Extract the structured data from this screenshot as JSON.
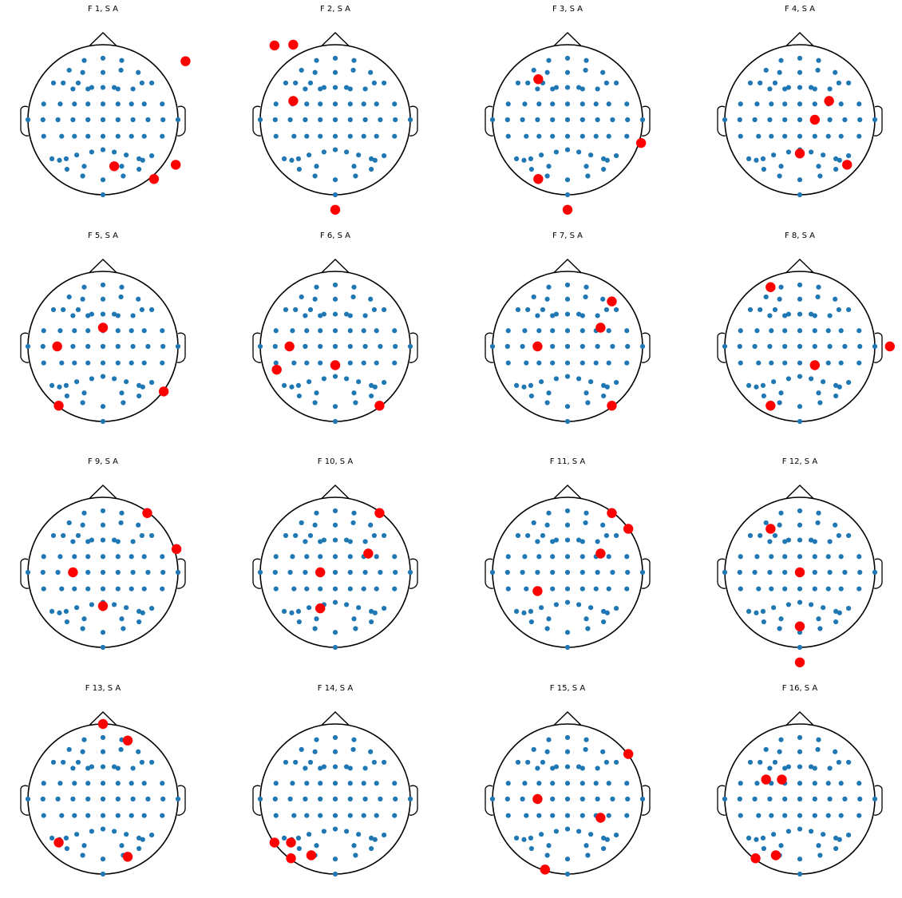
{
  "colors": {
    "sensor": "#1f77b4",
    "selected": "#ff0000",
    "outline": "#000000"
  },
  "rows": [
    [
      {
        "title": "F 1, S A"
      },
      {
        "title": "F 2, S A"
      },
      {
        "title": "F 3, S A"
      },
      {
        "title": "F 4, S A"
      }
    ],
    [
      {
        "title": "F 5, S A"
      },
      {
        "title": "F 6, S A"
      },
      {
        "title": "F 7, S A"
      },
      {
        "title": "F 8, S A"
      }
    ],
    [
      {
        "title": "F 9, S A"
      },
      {
        "title": "F 10, S A"
      },
      {
        "title": "F 11, S A"
      },
      {
        "title": "F 12, S A"
      }
    ],
    [
      {
        "title": "F 13, S A"
      },
      {
        "title": "F 14, S A"
      },
      {
        "title": "F 15, S A"
      },
      {
        "title": "F 16, S A"
      }
    ]
  ],
  "selected_sensors": {
    "F 1, S A": [
      [
        1.1,
        0.78
      ],
      [
        0.15,
        -0.62
      ],
      [
        0.97,
        -0.6
      ],
      [
        0.68,
        -0.79
      ]
    ],
    "F 2, S A": [
      [
        -0.81,
        0.99
      ],
      [
        -0.56,
        1.0
      ],
      [
        -0.56,
        0.25
      ],
      [
        0.0,
        -1.2
      ]
    ],
    "F 3, S A": [
      [
        -0.39,
        0.54
      ],
      [
        0.98,
        -0.31
      ],
      [
        -0.39,
        -0.79
      ],
      [
        0.0,
        -1.2
      ]
    ],
    "F 4, S A": [
      [
        0.39,
        0.25
      ],
      [
        0.2,
        0.0
      ],
      [
        0.0,
        -0.45
      ],
      [
        0.63,
        -0.6
      ]
    ],
    "F 5, S A": [
      [
        0.0,
        0.25
      ],
      [
        -0.61,
        0.0
      ],
      [
        0.81,
        -0.6
      ],
      [
        -0.59,
        -0.79
      ]
    ],
    "F 6, S A": [
      [
        -0.61,
        0.0
      ],
      [
        0.0,
        -0.25
      ],
      [
        -0.78,
        -0.31
      ],
      [
        0.59,
        -0.79
      ]
    ],
    "F 7, S A": [
      [
        0.59,
        0.6
      ],
      [
        0.44,
        0.25
      ],
      [
        -0.4,
        0.0
      ],
      [
        0.59,
        -0.79
      ]
    ],
    "F 8, S A": [
      [
        -0.39,
        0.79
      ],
      [
        1.2,
        0.0
      ],
      [
        0.2,
        -0.25
      ],
      [
        -0.39,
        -0.79
      ]
    ],
    "F 9, S A": [
      [
        0.59,
        0.79
      ],
      [
        0.98,
        0.31
      ],
      [
        -0.4,
        0.0
      ],
      [
        0.0,
        -0.45
      ]
    ],
    "F 10, S A": [
      [
        0.59,
        0.79
      ],
      [
        0.44,
        0.25
      ],
      [
        -0.2,
        0.0
      ],
      [
        -0.2,
        -0.48
      ]
    ],
    "F 11, S A": [
      [
        0.59,
        0.79
      ],
      [
        0.81,
        0.58
      ],
      [
        0.44,
        0.25
      ],
      [
        -0.4,
        -0.25
      ]
    ],
    "F 12, S A": [
      [
        -0.39,
        0.58
      ],
      [
        0.0,
        0.0
      ],
      [
        0.0,
        -0.72
      ],
      [
        0.0,
        -1.2
      ]
    ],
    "F 13, S A": [
      [
        0.0,
        1.0
      ],
      [
        0.33,
        0.78
      ],
      [
        -0.59,
        -0.58
      ],
      [
        0.33,
        -0.77
      ]
    ],
    "F 14, S A": [
      [
        -0.81,
        -0.58
      ],
      [
        -0.59,
        -0.58
      ],
      [
        -0.59,
        -0.79
      ],
      [
        -0.32,
        -0.75
      ]
    ],
    "F 15, S A": [
      [
        0.81,
        0.6
      ],
      [
        -0.4,
        0.0
      ],
      [
        0.44,
        -0.25
      ],
      [
        -0.3,
        -0.94
      ]
    ],
    "F 16, S A": [
      [
        -0.45,
        0.26
      ],
      [
        -0.24,
        0.26
      ],
      [
        -0.59,
        -0.79
      ],
      [
        -0.32,
        -0.75
      ]
    ]
  }
}
